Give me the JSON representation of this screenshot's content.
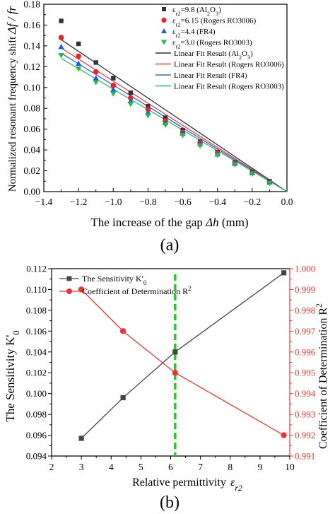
{
  "chart_data": [
    {
      "type": "scatter",
      "panel_label": "(a)",
      "xlabel_prefix": "The increase of the gap ",
      "xlabel_var": "Δh",
      "xlabel_unit": " (mm)",
      "ylabel_prefix": "Normalized resonant frequency shift ",
      "ylabel_var": "Δf / fr",
      "xlim": [
        -1.4,
        0.0
      ],
      "ylim": [
        0.0,
        0.18
      ],
      "xticks": [
        -1.4,
        -1.2,
        -1.0,
        -0.8,
        -0.6,
        -0.4,
        -0.2,
        0.0
      ],
      "xtick_labels": [
        "−1.4",
        "−1.2",
        "−1.0",
        "−0.8",
        "−0.6",
        "−0.4",
        "−0.2",
        "0.0"
      ],
      "yticks": [
        0.0,
        0.02,
        0.04,
        0.06,
        0.08,
        0.1,
        0.12,
        0.14,
        0.16,
        0.18
      ],
      "ytick_labels": [
        "0.00",
        "0.02",
        "0.04",
        "0.06",
        "0.08",
        "0.10",
        "0.12",
        "0.14",
        "0.16",
        "0.18"
      ],
      "legend_position": "top-right",
      "series": [
        {
          "name": "εr2=9.8 (Al2O3)",
          "marker": "square",
          "color": "#333333",
          "x": [
            -1.3,
            -1.2,
            -1.1,
            -1.0,
            -0.9,
            -0.8,
            -0.7,
            -0.6,
            -0.5,
            -0.4,
            -0.3,
            -0.2,
            -0.1
          ],
          "y": [
            0.164,
            0.142,
            0.124,
            0.109,
            0.095,
            0.082,
            0.071,
            0.059,
            0.048,
            0.038,
            0.028,
            0.019,
            0.01
          ]
        },
        {
          "name": "εr2=6.15 (Rogers RO3006)",
          "marker": "circle",
          "color": "#ee2222",
          "x": [
            -1.3,
            -1.2,
            -1.1,
            -1.0,
            -0.9,
            -0.8,
            -0.7,
            -0.6,
            -0.5,
            -0.4,
            -0.3,
            -0.2,
            -0.1
          ],
          "y": [
            0.148,
            0.13,
            0.115,
            0.102,
            0.09,
            0.079,
            0.068,
            0.057,
            0.047,
            0.037,
            0.027,
            0.018,
            0.009
          ]
        },
        {
          "name": "εr2=4.4 (FR4)",
          "marker": "triangle-up",
          "color": "#2255ee",
          "x": [
            -1.3,
            -1.2,
            -1.1,
            -1.0,
            -0.9,
            -0.8,
            -0.7,
            -0.6,
            -0.5,
            -0.4,
            -0.3,
            -0.2,
            -0.1
          ],
          "y": [
            0.139,
            0.123,
            0.109,
            0.098,
            0.087,
            0.076,
            0.066,
            0.056,
            0.046,
            0.036,
            0.027,
            0.018,
            0.009
          ]
        },
        {
          "name": "εr2=3.0 (Rogers RO3003)",
          "marker": "triangle-down",
          "color": "#22bb44",
          "x": [
            -1.3,
            -1.2,
            -1.1,
            -1.0,
            -0.9,
            -0.8,
            -0.7,
            -0.6,
            -0.5,
            -0.4,
            -0.3,
            -0.2,
            -0.1
          ],
          "y": [
            0.131,
            0.118,
            0.105,
            0.094,
            0.084,
            0.073,
            0.064,
            0.054,
            0.044,
            0.035,
            0.026,
            0.017,
            0.008
          ]
        }
      ],
      "fit_lines": [
        {
          "name": "Linear Fit Result (Al2O3)",
          "color": "#333333",
          "x": [
            -1.3,
            0.0
          ],
          "y": [
            0.146,
            0.0
          ]
        },
        {
          "name": "Linear Fit Result (Rogers RO3006)",
          "color": "#ee4444",
          "x": [
            -1.3,
            0.0
          ],
          "y": [
            0.138,
            0.0
          ]
        },
        {
          "name": "Linear Fit Result (FR4)",
          "color": "#3366dd",
          "x": [
            -1.3,
            0.0
          ],
          "y": [
            0.133,
            0.0
          ]
        },
        {
          "name": "Linear Fit Result (Rogers RO3003)",
          "color": "#33bb66",
          "x": [
            -1.3,
            0.0
          ],
          "y": [
            0.128,
            0.0
          ]
        }
      ]
    },
    {
      "type": "line",
      "panel_label": "(b)",
      "xlabel": "Relative permittivity",
      "xlabel_var": "εr2",
      "ylabel_left": "The Sensitivity K'0",
      "ylabel_right": "Coefficient of Determination R²",
      "xlim": [
        2,
        10
      ],
      "ylim_left": [
        0.094,
        0.112
      ],
      "ylim_right": [
        0.991,
        1.0
      ],
      "xticks": [
        2,
        3,
        4,
        5,
        6,
        7,
        8,
        9,
        10
      ],
      "xtick_labels": [
        "2",
        "3",
        "4",
        "5",
        "6",
        "7",
        "8",
        "9",
        "10"
      ],
      "yticks_left": [
        0.094,
        0.096,
        0.098,
        0.1,
        0.102,
        0.104,
        0.106,
        0.108,
        0.11,
        0.112
      ],
      "ytick_labels_left": [
        "0.094",
        "0.096",
        "0.098",
        "0.100",
        "0.102",
        "0.104",
        "0.106",
        "0.108",
        "0.110",
        "0.112"
      ],
      "yticks_right": [
        0.991,
        0.992,
        0.993,
        0.994,
        0.995,
        0.996,
        0.997,
        0.998,
        0.999,
        1.0
      ],
      "ytick_labels_right": [
        "0.991",
        "0.992",
        "0.993",
        "0.994",
        "0.995",
        "0.996",
        "0.997",
        "0.998",
        "0.999",
        "1.000"
      ],
      "legend_position": "top-left",
      "vline_x": 6.15,
      "vline_color": "#22cc22",
      "right_axis_color": "#ee3333",
      "series": [
        {
          "name": "The Sensitivity K'0",
          "marker": "square",
          "color": "#444444",
          "axis": "left",
          "x": [
            3.0,
            4.4,
            6.15,
            9.8
          ],
          "y": [
            0.0957,
            0.0996,
            0.104,
            0.1116
          ]
        },
        {
          "name": "Coefficient of Determination R²",
          "marker": "circle",
          "color": "#ee3333",
          "axis": "right",
          "x": [
            3.0,
            4.4,
            6.15,
            9.8
          ],
          "y": [
            0.999,
            0.997,
            0.995,
            0.992
          ]
        }
      ]
    }
  ]
}
